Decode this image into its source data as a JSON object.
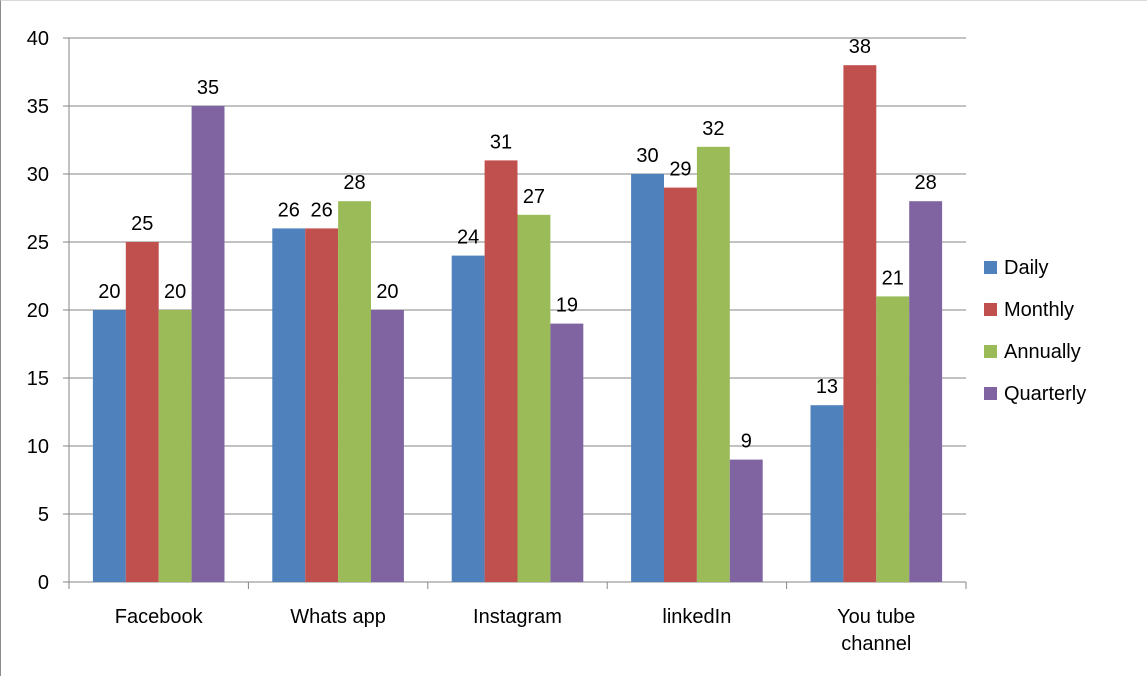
{
  "chart_data": {
    "type": "bar",
    "title": "",
    "xlabel": "",
    "ylabel": "",
    "categories": [
      [
        "Facebook"
      ],
      [
        "Whats app"
      ],
      [
        "Instagram"
      ],
      [
        "linkedIn"
      ],
      [
        "You tube",
        "channel"
      ]
    ],
    "series": [
      {
        "name": "Daily",
        "color": "#4f81bd",
        "values": [
          20,
          26,
          24,
          30,
          13
        ]
      },
      {
        "name": "Monthly",
        "color": "#c0504d",
        "values": [
          25,
          26,
          31,
          29,
          38
        ]
      },
      {
        "name": "Annually",
        "color": "#9bbb59",
        "values": [
          20,
          28,
          27,
          32,
          21
        ]
      },
      {
        "name": "Quarterly",
        "color": "#8064a2",
        "values": [
          35,
          20,
          19,
          9,
          28
        ]
      }
    ],
    "ylim": [
      0,
      40
    ],
    "yticks": [
      0,
      5,
      10,
      15,
      20,
      25,
      30,
      35,
      40
    ],
    "grid": true,
    "legend": "right",
    "data_labels": true
  }
}
